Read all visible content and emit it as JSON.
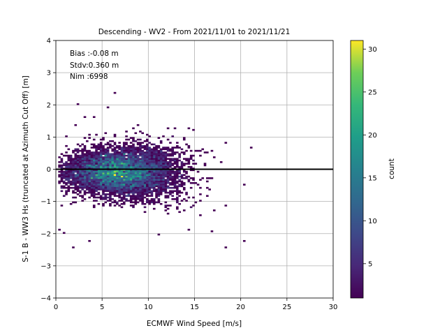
{
  "chart_data": {
    "type": "heatmap",
    "title": "Descending - WV2 - From 2021/11/01 to 2021/11/21",
    "xlabel": "ECMWF Wind Speed [m/s]",
    "ylabel": "S-1 B - WW3 Hs (truncated at Azimuth Cut Off) [m]",
    "xlim": [
      0,
      30
    ],
    "ylim": [
      -4,
      4
    ],
    "xticks": [
      0,
      5,
      10,
      15,
      20,
      25,
      30
    ],
    "yticks": [
      -4,
      -3,
      -2,
      -1,
      0,
      1,
      2,
      3,
      4
    ],
    "grid": true,
    "reference_line_y": 0,
    "annotations": [
      "Bias :-0.08 m",
      "Stdv:0.360 m",
      "Nim :6998"
    ],
    "colorbar": {
      "label": "count",
      "range": [
        1,
        31
      ],
      "ticks": [
        5,
        10,
        15,
        20,
        25,
        30
      ],
      "colormap": "viridis"
    },
    "density_summary": {
      "bin_size_x": 0.25,
      "bin_size_y": 0.05,
      "peak_count": 31,
      "peak_location": {
        "x": 7,
        "y": -0.1
      },
      "core_x_range": [
        1,
        18
      ],
      "core_y_range": [
        -1.0,
        0.8
      ]
    },
    "outliers": [
      {
        "x": 6.3,
        "y": 2.35
      },
      {
        "x": 2.3,
        "y": 2.0
      },
      {
        "x": 5.5,
        "y": 1.92
      },
      {
        "x": 3.0,
        "y": 1.65
      },
      {
        "x": 4.2,
        "y": 1.6
      },
      {
        "x": 2.1,
        "y": 1.35
      },
      {
        "x": 14.4,
        "y": 1.25
      },
      {
        "x": 1.1,
        "y": 1.0
      },
      {
        "x": 18.3,
        "y": 0.8
      },
      {
        "x": 21.2,
        "y": 0.65
      },
      {
        "x": 20.4,
        "y": -0.5
      },
      {
        "x": 18.3,
        "y": -1.15
      },
      {
        "x": 16.9,
        "y": -1.95
      },
      {
        "x": 14.3,
        "y": -1.9
      },
      {
        "x": 11.1,
        "y": -2.05
      },
      {
        "x": 0.3,
        "y": -1.9
      },
      {
        "x": 0.9,
        "y": -2.0
      },
      {
        "x": 1.8,
        "y": -2.45
      },
      {
        "x": 3.7,
        "y": -2.25
      },
      {
        "x": 18.3,
        "y": -2.45
      },
      {
        "x": 20.3,
        "y": -2.25
      }
    ]
  }
}
